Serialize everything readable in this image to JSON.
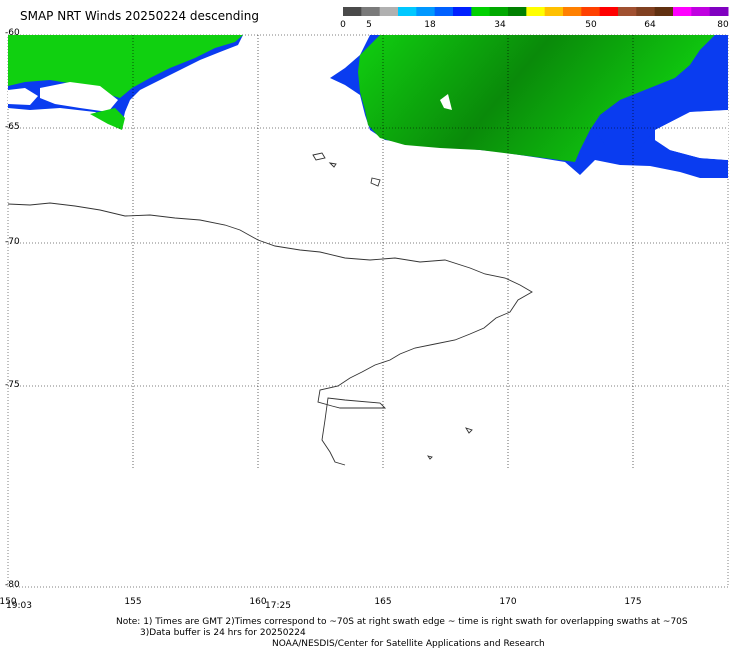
{
  "title": "SMAP NRT Winds  20250224 descending",
  "colorbar": {
    "labels": [
      "0",
      "5",
      "18",
      "34",
      "50",
      "64",
      "80"
    ],
    "segments": [
      "#4a4a4a",
      "#7a7a7a",
      "#b0b0b0",
      "#00c8ff",
      "#0098ff",
      "#0060ff",
      "#0020ff",
      "#00d000",
      "#00a800",
      "#008000",
      "#ffff00",
      "#ffc000",
      "#ff8000",
      "#ff4000",
      "#ff0000",
      "#a05030",
      "#804020",
      "#603010",
      "#ff00ff",
      "#c000e0",
      "#8000c0"
    ]
  },
  "map": {
    "lat_labels": [
      "-60",
      "-65",
      "-70",
      "-75",
      "-80"
    ],
    "lon_labels": [
      "150",
      "155",
      "160",
      "165",
      "170",
      "175"
    ],
    "times": [
      "19:03",
      "17:25"
    ],
    "wind_colors": {
      "blue": "#0a3cf0",
      "green": "#10d010",
      "dark_green": "#0a8a0a",
      "light_blue": "#00c8ff"
    }
  },
  "notes": {
    "line1": "Note: 1) Times are GMT 2)Times correspond to ~70S at right swath edge ~ time is right swath for overlapping swaths at ~70S",
    "line2": "3)Data buffer is 24 hrs for 20250224",
    "line3": "NOAA/NESDIS/Center for Satellite Applications and Research"
  }
}
